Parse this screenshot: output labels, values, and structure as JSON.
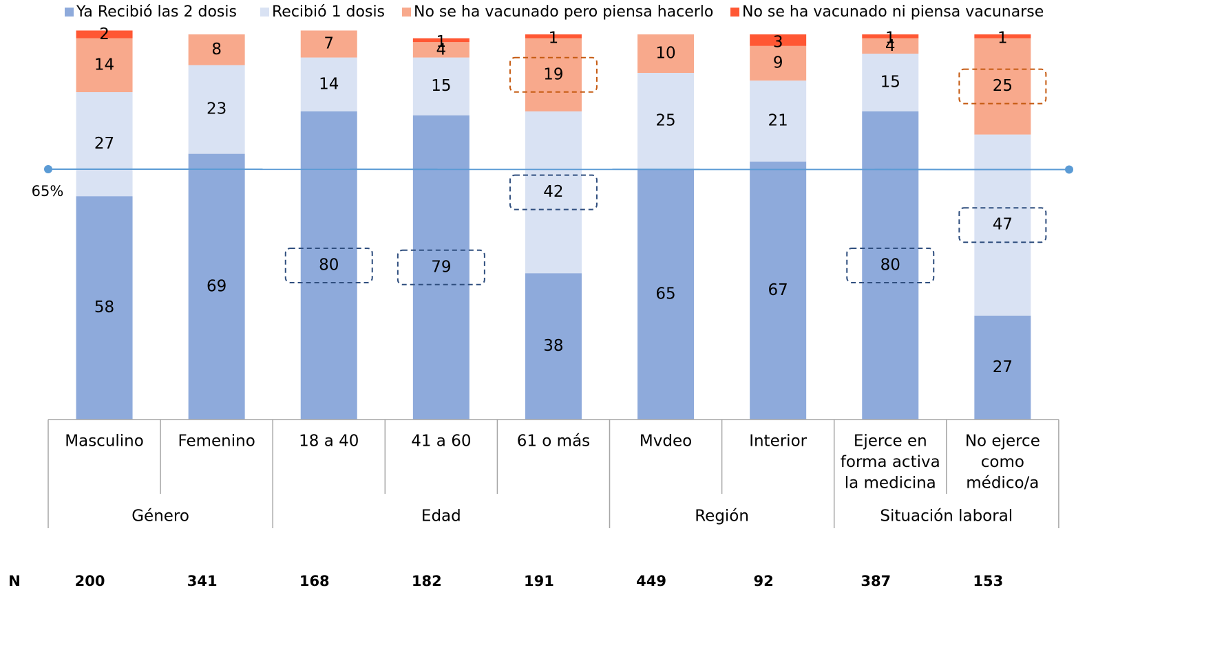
{
  "chart_data": {
    "type": "bar",
    "stacked": true,
    "categories": [
      "Masculino",
      "Femenino",
      "18 a 40",
      "41 a 60",
      "61 o más",
      "Mvdeo",
      "Interior",
      "Ejerce en forma activa la medicina",
      "No ejerce como médico/a"
    ],
    "category_lines": [
      [
        "Masculino"
      ],
      [
        "Femenino"
      ],
      [
        "18 a 40"
      ],
      [
        "41 a 60"
      ],
      [
        "61 o más"
      ],
      [
        "Mvdeo"
      ],
      [
        "Interior"
      ],
      [
        "Ejerce en",
        "forma activa",
        "la medicina"
      ],
      [
        "No ejerce",
        "como",
        "médico/a"
      ]
    ],
    "groups": [
      {
        "name": "Género",
        "start": 0,
        "end": 1
      },
      {
        "name": "Edad",
        "start": 2,
        "end": 4
      },
      {
        "name": "Región",
        "start": 5,
        "end": 6
      },
      {
        "name": "Situación laboral",
        "start": 7,
        "end": 8
      }
    ],
    "series": [
      {
        "name": "Ya Recibió las 2 dosis",
        "color": "#8eaadb",
        "values": [
          58,
          69,
          80,
          79,
          38,
          65,
          67,
          80,
          27
        ]
      },
      {
        "name": "Recibió 1 dosis",
        "color": "#d9e2f3",
        "values": [
          27,
          23,
          14,
          15,
          42,
          25,
          21,
          15,
          47
        ]
      },
      {
        "name": "No se ha vacunado pero piensa hacerlo",
        "color": "#f8a98c",
        "values": [
          14,
          8,
          7,
          4,
          19,
          10,
          9,
          4,
          25
        ]
      },
      {
        "name": "No se ha vacunado ni piensa vacunarse",
        "color": "#ff5733",
        "values": [
          2,
          0,
          0,
          1,
          1,
          0,
          3,
          1,
          1
        ]
      }
    ],
    "ylim": [
      0,
      100
    ],
    "reference_line": {
      "value": 65,
      "label": "65%",
      "color": "#5b9bd5"
    },
    "highlights": [
      {
        "category": 2,
        "series": 0,
        "color": "#2f4e7e"
      },
      {
        "category": 3,
        "series": 0,
        "color": "#2f4e7e"
      },
      {
        "category": 4,
        "series": 1,
        "color": "#2f4e7e"
      },
      {
        "category": 4,
        "series": 2,
        "color": "#c55a11"
      },
      {
        "category": 7,
        "series": 0,
        "color": "#2f4e7e"
      },
      {
        "category": 8,
        "series": 1,
        "color": "#2f4e7e"
      },
      {
        "category": 8,
        "series": 2,
        "color": "#c55a11"
      }
    ],
    "n_label": "N",
    "n_values": [
      "200",
      "341",
      "168",
      "182",
      "191",
      "449",
      "92",
      "387",
      "153"
    ],
    "legend_position": "top",
    "grid": false
  }
}
